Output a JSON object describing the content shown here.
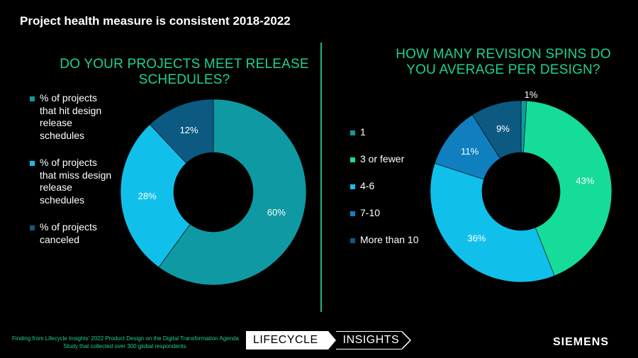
{
  "title": "Project health measure is consistent 2018-2022",
  "chart_data": [
    {
      "type": "pie",
      "title": "DO YOUR PROJECTS MEET RELEASE SCHEDULES?",
      "categories": [
        "% of projects that hit design release schedules",
        "% of projects that miss design release schedules",
        "% of projects canceled"
      ],
      "values": [
        60,
        28,
        12
      ],
      "labels": [
        "60%",
        "28%",
        "12%"
      ],
      "colors": [
        "#0f9aa3",
        "#11c0ea",
        "#0c5a82"
      ]
    },
    {
      "type": "pie",
      "title": "HOW MANY REVISION SPINS DO YOU AVERAGE PER DESIGN?",
      "categories": [
        "1",
        "3 or fewer",
        "4-6",
        "7-10",
        "More than 10"
      ],
      "values": [
        1,
        43,
        36,
        11,
        9
      ],
      "labels": [
        "1%",
        "43%",
        "36%",
        "11%",
        "9%"
      ],
      "colors": [
        "#0f9aa3",
        "#16dc9a",
        "#11c0ea",
        "#0f7fc0",
        "#0c5a82"
      ]
    }
  ],
  "footnote": "Finding from Lifecycle Insights' 2022 Product Design on the Digital Transformation Agenda Study that collected over 300 global respondents.",
  "logo": {
    "part1": "LIFECYCLE",
    "part2": "INSIGHTS"
  },
  "brand": "SIEMENS"
}
